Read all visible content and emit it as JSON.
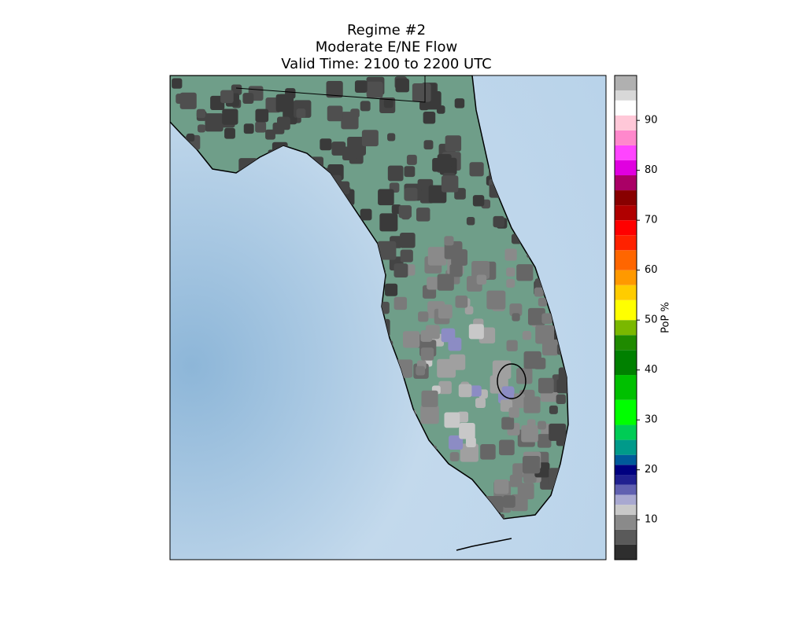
{
  "chart_data": {
    "type": "map",
    "title": [
      "Regime #2",
      "Moderate E/NE Flow",
      "Valid Time: 2100 to 2200 UTC"
    ],
    "colorbar": {
      "label": "PoP %",
      "clim": [
        2,
        99
      ],
      "ticks": [
        10,
        20,
        30,
        40,
        50,
        60,
        70,
        80,
        90
      ],
      "colormap": [
        {
          "value": 2,
          "color": "#2e2e2e"
        },
        {
          "value": 5,
          "color": "#5a5a5a"
        },
        {
          "value": 8,
          "color": "#8a8a8a"
        },
        {
          "value": 11,
          "color": "#c8c8c8"
        },
        {
          "value": 13,
          "color": "#a8a8d0"
        },
        {
          "value": 15,
          "color": "#6060b0"
        },
        {
          "value": 17,
          "color": "#202090"
        },
        {
          "value": 19,
          "color": "#000080"
        },
        {
          "value": 21,
          "color": "#005a9a"
        },
        {
          "value": 23,
          "color": "#009a8a"
        },
        {
          "value": 26,
          "color": "#00cc55"
        },
        {
          "value": 29,
          "color": "#00ff00"
        },
        {
          "value": 34,
          "color": "#00c000"
        },
        {
          "value": 39,
          "color": "#008000"
        },
        {
          "value": 44,
          "color": "#1f8a00"
        },
        {
          "value": 47,
          "color": "#7ab800"
        },
        {
          "value": 50,
          "color": "#ffff00"
        },
        {
          "value": 54,
          "color": "#ffcc00"
        },
        {
          "value": 57,
          "color": "#ff9900"
        },
        {
          "value": 60,
          "color": "#ff6600"
        },
        {
          "value": 64,
          "color": "#ff2200"
        },
        {
          "value": 67,
          "color": "#ff0000"
        },
        {
          "value": 70,
          "color": "#b00000"
        },
        {
          "value": 73,
          "color": "#880000"
        },
        {
          "value": 76,
          "color": "#aa0066"
        },
        {
          "value": 79,
          "color": "#e000e0"
        },
        {
          "value": 82,
          "color": "#ff44ff"
        },
        {
          "value": 85,
          "color": "#ff88cc"
        },
        {
          "value": 88,
          "color": "#ffc8d8"
        },
        {
          "value": 91,
          "color": "#ffffff"
        },
        {
          "value": 94,
          "color": "#d8d8d8"
        },
        {
          "value": 96,
          "color": "#b0b0b0"
        },
        {
          "value": 99,
          "color": "#909090"
        }
      ]
    }
  }
}
